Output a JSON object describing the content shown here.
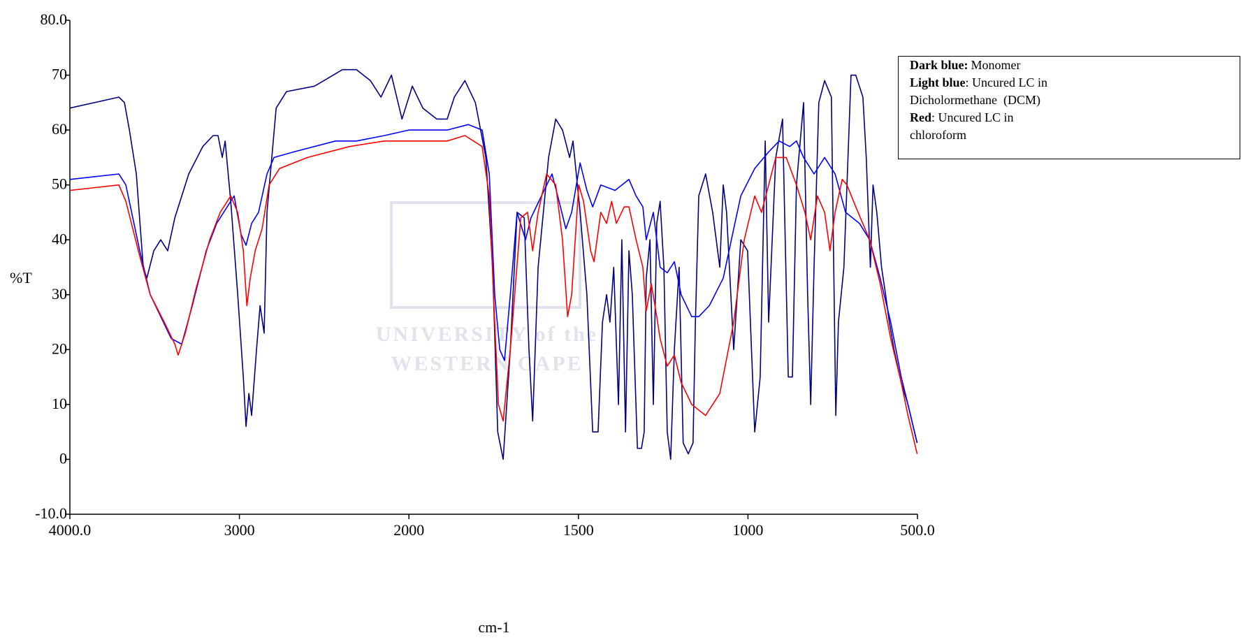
{
  "chart_data": {
    "type": "line",
    "xlabel": "cm-1",
    "ylabel": "%T",
    "xlim": [
      4000,
      500
    ],
    "x_break": 2000,
    "xticks": [
      {
        "value": 4000,
        "label": "4000.0"
      },
      3000,
      2000,
      1500,
      1000,
      {
        "value": 500,
        "label": "500.0"
      }
    ],
    "ylim": [
      -10,
      80
    ],
    "yticks": [
      {
        "value": -10,
        "label": "-10.0"
      },
      0,
      10,
      20,
      30,
      40,
      50,
      60,
      70,
      {
        "value": 80,
        "label": "80.0"
      }
    ],
    "watermark": [
      "UNIVERSITY of the",
      "WESTERN CAPE"
    ],
    "series": [
      {
        "legend_key": "Dark blue:",
        "name": "Monomer",
        "color": "#000080",
        "x": [
          4000,
          3711,
          3678,
          3649,
          3608,
          3567,
          3546,
          3505,
          3464,
          3423,
          3381,
          3299,
          3216,
          3155,
          3126,
          3101,
          3084,
          3051,
          3010,
          2977,
          2961,
          2944,
          2928,
          2899,
          2878,
          2854,
          2837,
          2783,
          2722,
          2557,
          2392,
          2309,
          2227,
          2165,
          2103,
          2041,
          1990,
          1959,
          1918,
          1887,
          1866,
          1835,
          1804,
          1773,
          1753,
          1738,
          1722,
          1701,
          1681,
          1660,
          1646,
          1635,
          1619,
          1588,
          1567,
          1547,
          1526,
          1516,
          1495,
          1475,
          1458,
          1442,
          1429,
          1417,
          1407,
          1396,
          1382,
          1372,
          1361,
          1351,
          1341,
          1326,
          1314,
          1306,
          1300,
          1289,
          1279,
          1269,
          1259,
          1248,
          1238,
          1228,
          1217,
          1203,
          1191,
          1176,
          1162,
          1155,
          1145,
          1125,
          1104,
          1083,
          1073,
          1063,
          1042,
          1021,
          1001,
          980,
          964,
          949,
          939,
          918,
          898,
          881,
          869,
          857,
          836,
          824,
          815,
          805,
          791,
          774,
          754,
          741,
          733,
          717,
          708,
          696,
          682,
          661,
          651,
          639,
          631,
          620,
          606,
          594,
          583,
          569,
          548,
          528,
          501
        ],
        "values": [
          64,
          66,
          65,
          60,
          52,
          35,
          33,
          38,
          40,
          38,
          44,
          52,
          57,
          59,
          59,
          55,
          58,
          47,
          30,
          15,
          6,
          12,
          8,
          20,
          28,
          23,
          45,
          64,
          67,
          68,
          71,
          71,
          69,
          66,
          70,
          62,
          68,
          64,
          62,
          62,
          66,
          69,
          65,
          55,
          35,
          5,
          0,
          20,
          45,
          44,
          20,
          7,
          35,
          55,
          62,
          60,
          55,
          58,
          45,
          30,
          5,
          5,
          25,
          30,
          25,
          35,
          10,
          40,
          5,
          38,
          30,
          2,
          2,
          5,
          33,
          40,
          10,
          43,
          47,
          35,
          5,
          0,
          20,
          35,
          3,
          1,
          3,
          25,
          48,
          52,
          45,
          35,
          50,
          45,
          20,
          40,
          38,
          5,
          15,
          58,
          25,
          55,
          62,
          15,
          15,
          50,
          65,
          30,
          10,
          35,
          65,
          69,
          66,
          8,
          25,
          35,
          50,
          70,
          70,
          66,
          55,
          35,
          50,
          45,
          35,
          30,
          25,
          20,
          14,
          10,
          3
        ]
      },
      {
        "legend_key": "Light blue",
        "name": ": Uncured LC in Dicholormethane  (DCM)",
        "color": "#0000ff",
        "x": [
          4000,
          3711,
          3670,
          3588,
          3526,
          3464,
          3402,
          3340,
          3278,
          3196,
          3134,
          3072,
          3031,
          2990,
          2961,
          2928,
          2887,
          2837,
          2796,
          2681,
          2433,
          2309,
          2144,
          2000,
          1887,
          1825,
          1784,
          1763,
          1747,
          1732,
          1718,
          1701,
          1681,
          1656,
          1640,
          1609,
          1578,
          1557,
          1537,
          1520,
          1495,
          1475,
          1458,
          1434,
          1392,
          1351,
          1330,
          1310,
          1300,
          1279,
          1259,
          1238,
          1217,
          1197,
          1166,
          1145,
          1114,
          1073,
          1042,
          1021,
          980,
          939,
          908,
          877,
          857,
          836,
          805,
          774,
          743,
          712,
          671,
          641,
          610,
          579,
          548,
          528,
          501
        ],
        "values": [
          51,
          52,
          50,
          38,
          30,
          26,
          22,
          21,
          28,
          38,
          43,
          46,
          48,
          41,
          39,
          43,
          45,
          52,
          55,
          56,
          58,
          58,
          59,
          60,
          60,
          61,
          60,
          52,
          30,
          20,
          18,
          30,
          45,
          40,
          44,
          48,
          52,
          47,
          42,
          45,
          54,
          49,
          46,
          50,
          49,
          51,
          48,
          46,
          40,
          45,
          35,
          34,
          36,
          30,
          26,
          26,
          28,
          33,
          42,
          48,
          53,
          56,
          58,
          57,
          58,
          55,
          52,
          55,
          52,
          45,
          43,
          40,
          33,
          25,
          15,
          10,
          3
        ]
      },
      {
        "legend_key": "Red",
        "name": ": Uncured LC in chloroform",
        "color": "#ff0000",
        "x": [
          4000,
          3711,
          3670,
          3588,
          3526,
          3443,
          3381,
          3361,
          3319,
          3257,
          3175,
          3113,
          3051,
          3010,
          2977,
          2956,
          2936,
          2907,
          2866,
          2825,
          2763,
          2598,
          2350,
          2144,
          2000,
          1887,
          1835,
          1784,
          1763,
          1747,
          1736,
          1722,
          1701,
          1670,
          1650,
          1635,
          1619,
          1594,
          1567,
          1547,
          1532,
          1520,
          1499,
          1485,
          1464,
          1454,
          1434,
          1417,
          1402,
          1388,
          1365,
          1351,
          1330,
          1310,
          1300,
          1285,
          1269,
          1259,
          1238,
          1217,
          1197,
          1166,
          1125,
          1083,
          1042,
          1011,
          980,
          960,
          939,
          918,
          887,
          857,
          832,
          815,
          795,
          774,
          758,
          743,
          722,
          708,
          682,
          641,
          610,
          579,
          548,
          528,
          501
        ],
        "values": [
          49,
          50,
          47,
          37,
          30,
          25,
          21,
          19,
          23,
          31,
          40,
          45,
          48,
          45,
          38,
          28,
          33,
          38,
          42,
          50,
          53,
          55,
          57,
          58,
          58,
          58,
          59,
          57,
          48,
          25,
          10,
          7,
          20,
          44,
          45,
          38,
          45,
          52,
          50,
          40,
          26,
          30,
          50,
          47,
          38,
          36,
          45,
          43,
          47,
          43,
          46,
          46,
          40,
          35,
          27,
          32,
          26,
          22,
          17,
          19,
          14,
          10,
          8,
          12,
          25,
          40,
          48,
          45,
          50,
          55,
          55,
          50,
          45,
          40,
          48,
          45,
          38,
          45,
          51,
          50,
          46,
          40,
          32,
          22,
          14,
          8,
          1
        ]
      }
    ]
  }
}
